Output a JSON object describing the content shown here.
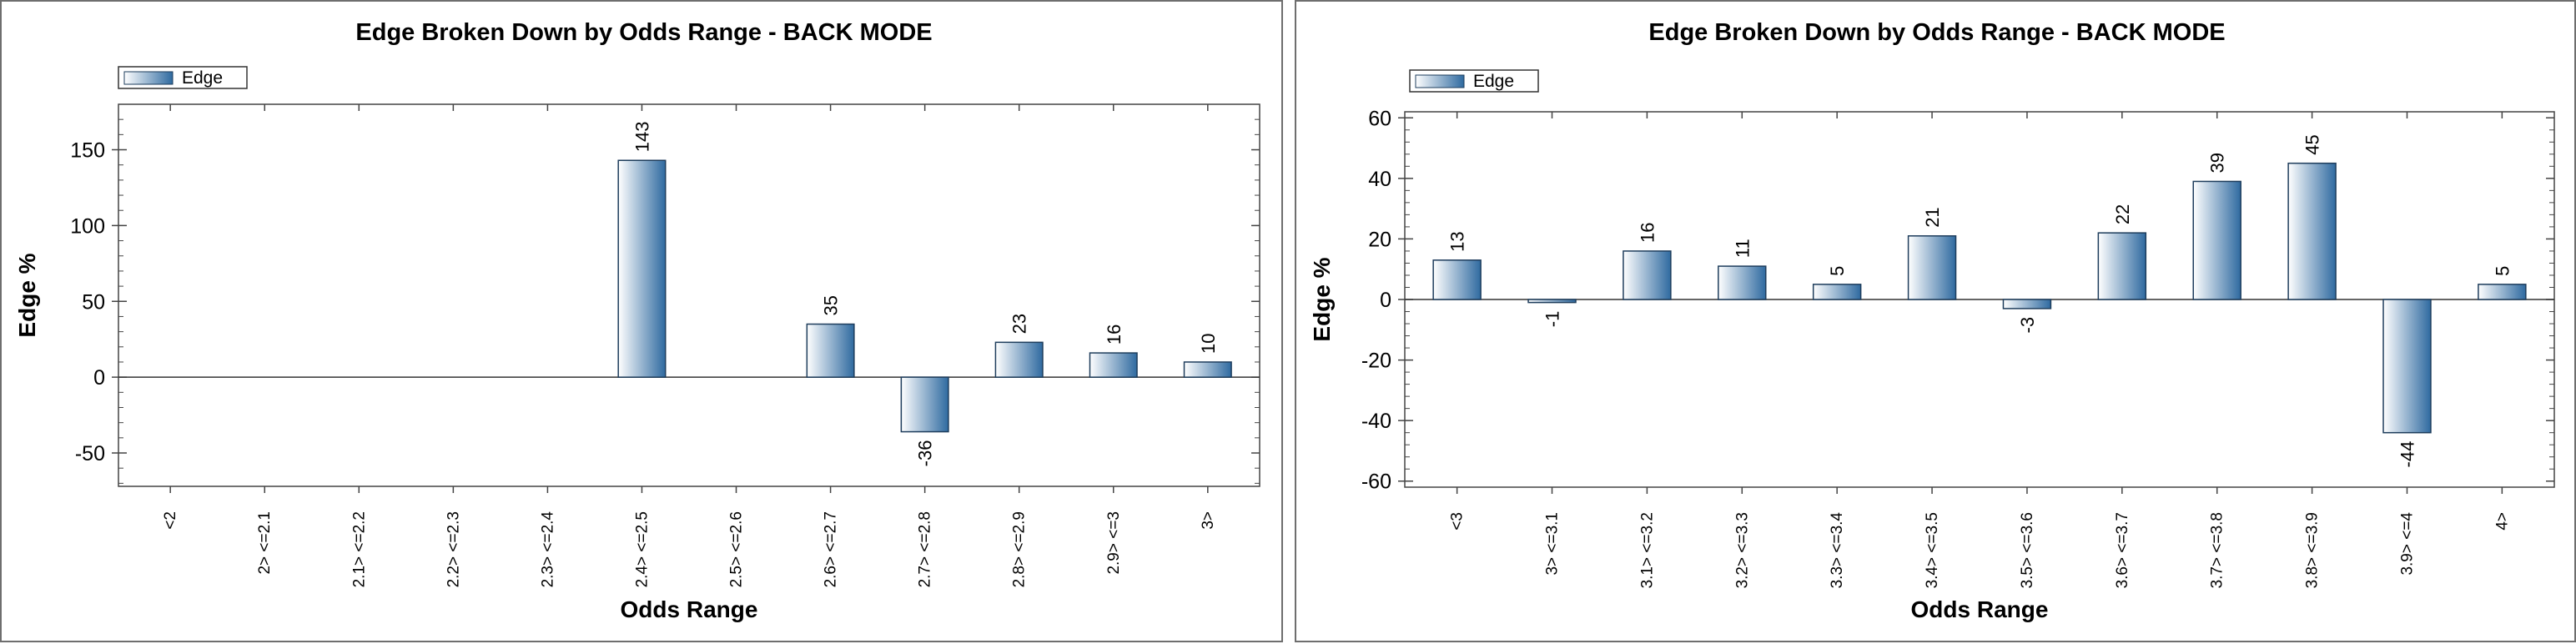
{
  "colors": {
    "bar_light": "#ffffff",
    "bar_dark": "#2f6aa0",
    "bar_stroke": "#1e3d5c"
  },
  "chart_data": [
    {
      "type": "bar",
      "title": "Edge Broken Down by Odds Range - BACK MODE",
      "xlabel": "Odds Range",
      "ylabel": "Edge %",
      "legend": [
        "Edge"
      ],
      "legend_position": "top-left",
      "grid": false,
      "ylim": [
        -72,
        180
      ],
      "yticks": [
        -50,
        0,
        50,
        100,
        150
      ],
      "categories": [
        "<2",
        "2> <=2.1",
        "2.1> <=2.2",
        "2.2> <=2.3",
        "2.3> <=2.4",
        "2.4> <=2.5",
        "2.5> <=2.6",
        "2.6> <=2.7",
        "2.7> <=2.8",
        "2.8> <=2.9",
        "2.9> <=3",
        "3>"
      ],
      "series": [
        {
          "name": "Edge",
          "values": [
            null,
            null,
            null,
            null,
            null,
            143,
            null,
            35,
            -36,
            23,
            16,
            10
          ]
        }
      ]
    },
    {
      "type": "bar",
      "title": "Edge Broken Down by Odds Range - BACK MODE",
      "xlabel": "Odds Range",
      "ylabel": "Edge %",
      "legend": [
        "Edge"
      ],
      "legend_position": "top-left",
      "grid": false,
      "ylim": [
        -62,
        62
      ],
      "yticks": [
        -60,
        -40,
        -20,
        0,
        20,
        40,
        60
      ],
      "categories": [
        "<3",
        "3> <=3.1",
        "3.1> <=3.2",
        "3.2> <=3.3",
        "3.3> <=3.4",
        "3.4> <=3.5",
        "3.5> <=3.6",
        "3.6> <=3.7",
        "3.7> <=3.8",
        "3.8> <=3.9",
        "3.9> <=4",
        "4>"
      ],
      "series": [
        {
          "name": "Edge",
          "values": [
            13,
            -1,
            16,
            11,
            5,
            21,
            -3,
            22,
            39,
            45,
            -44,
            5
          ]
        }
      ]
    }
  ]
}
